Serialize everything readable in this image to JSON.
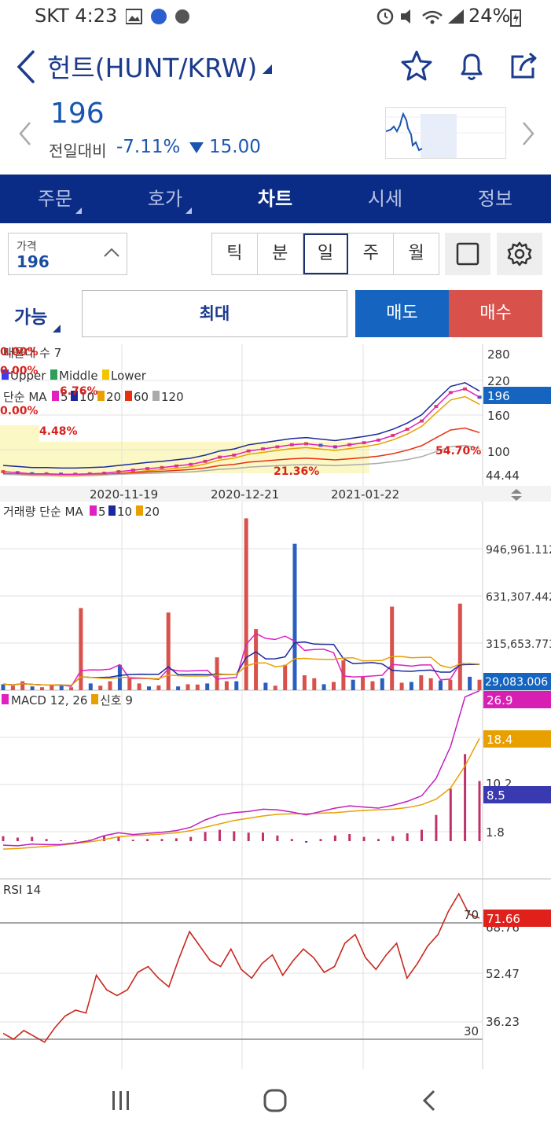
{
  "status_bar": {
    "carrier_time": "SKT 4:23",
    "battery": "24%"
  },
  "header": {
    "title": "헌트(HUNT/KRW)"
  },
  "price": {
    "value": "196",
    "change_label": "전일대비",
    "change_rate": "-7.11%",
    "change_amount": "15.00"
  },
  "tabs": [
    {
      "label": "주문",
      "has_menu": true
    },
    {
      "label": "호가",
      "has_menu": true
    },
    {
      "label": "차트",
      "active": true
    },
    {
      "label": "시세"
    },
    {
      "label": "정보"
    }
  ],
  "price_input": {
    "label": "가격",
    "value": "196"
  },
  "periods": [
    {
      "label": "틱"
    },
    {
      "label": "분"
    },
    {
      "label": "일",
      "active": true
    },
    {
      "label": "주"
    },
    {
      "label": "월"
    }
  ],
  "order": {
    "available_label": "가능",
    "max_label": "최대",
    "sell_label": "매도",
    "buy_label": "매수"
  },
  "colors": {
    "accent_blue": "#0a2c86",
    "sell": "#1565c0",
    "buy": "#d9514b"
  },
  "chart_data": [
    {
      "type": "line",
      "panel": "price",
      "legend": {
        "row1": "매물대 수 7",
        "row2": [
          "Upper",
          "Middle",
          "Lower"
        ],
        "row3_label": "단순 MA",
        "row3_values": [
          "5",
          "10",
          "20",
          "60",
          "120"
        ]
      },
      "annotations": [
        "0.00%",
        "0.00%",
        "6.76%",
        "0.00%",
        "4.48%",
        "21.36%",
        "54.70%"
      ],
      "y_ticks": [
        "280",
        "220",
        "160",
        "100",
        "44.44"
      ],
      "current_value": "196",
      "x_ticks": [
        "2020-11-19",
        "2020-12-21",
        "2021-01-22"
      ],
      "series": [
        {
          "name": "5",
          "values": [
            52,
            50,
            48,
            48,
            47,
            47,
            48,
            49,
            52,
            55,
            58,
            60,
            63,
            66,
            72,
            80,
            84,
            92,
            96,
            100,
            104,
            106,
            103,
            100,
            104,
            108,
            113,
            122,
            134,
            150,
            178,
            205,
            212,
            196
          ]
        }
      ]
    },
    {
      "type": "bar",
      "panel": "volume",
      "legend": {
        "label": "거래량 단순 MA",
        "values": [
          "5",
          "10",
          "20"
        ]
      },
      "y_ticks": [
        "946,961.112",
        "631,307.442",
        "315,653.773"
      ],
      "current_value": "29,083.006",
      "values": [
        40000,
        30000,
        60000,
        25000,
        20000,
        35000,
        30000,
        20000,
        550000,
        45000,
        30000,
        60000,
        170000,
        90000,
        45000,
        25000,
        32000,
        520000,
        25000,
        40000,
        38000,
        45000,
        220000,
        60000,
        60000,
        1150000,
        410000,
        50000,
        30000,
        170000,
        980000,
        100000,
        80000,
        40000,
        55000,
        200000,
        70000,
        90000,
        60000,
        80000,
        560000,
        50000,
        55000,
        100000,
        80000,
        65000,
        70000,
        580000,
        90000,
        70000
      ]
    },
    {
      "type": "line",
      "panel": "macd",
      "legend": {
        "label1": "MACD 12, 26",
        "label2": "신호 9"
      },
      "y_ticks": [
        "10.2",
        "1.8"
      ],
      "current_values": [
        "26.9",
        "18.4",
        "8.5"
      ],
      "series": [
        {
          "name": "MACD 12, 26",
          "values": [
            -0.6,
            -0.7,
            -0.4,
            -0.5,
            -0.5,
            -0.2,
            0.2,
            1.1,
            1.6,
            1.3,
            1.5,
            1.7,
            2.0,
            2.6,
            3.9,
            4.8,
            5.2,
            5.4,
            5.8,
            5.7,
            5.3,
            4.8,
            5.4,
            6.0,
            6.4,
            6.2,
            6.0,
            6.5,
            7.2,
            8.2,
            11.3,
            17.0,
            25.8,
            26.9
          ]
        },
        {
          "name": "신호 9",
          "values": [
            -1.3,
            -1.2,
            -1.0,
            -0.8,
            -0.6,
            -0.3,
            0.0,
            0.4,
            0.9,
            1.1,
            1.2,
            1.4,
            1.6,
            2.0,
            2.6,
            3.2,
            3.8,
            4.2,
            4.6,
            4.9,
            5.0,
            5.0,
            5.1,
            5.2,
            5.4,
            5.6,
            5.7,
            5.8,
            6.1,
            6.6,
            7.6,
            9.6,
            13.5,
            18.4
          ]
        }
      ]
    },
    {
      "type": "line",
      "panel": "rsi",
      "legend": {
        "label": "RSI 14"
      },
      "y_ticks": [
        "70",
        "68.76",
        "52.47",
        "36.23",
        "30"
      ],
      "current_value": "71.66",
      "series": [
        {
          "name": "RSI 14",
          "values": [
            32,
            30,
            33,
            31,
            29,
            34,
            38,
            40,
            39,
            52,
            47,
            45,
            47,
            53,
            55,
            51,
            48,
            58,
            67,
            62,
            57,
            55,
            61,
            54,
            51,
            56,
            59,
            52,
            57,
            61,
            58,
            53,
            55,
            63,
            66,
            58,
            54,
            59,
            63,
            51,
            56,
            62,
            66,
            74,
            80,
            73,
            71.66
          ]
        }
      ]
    }
  ]
}
